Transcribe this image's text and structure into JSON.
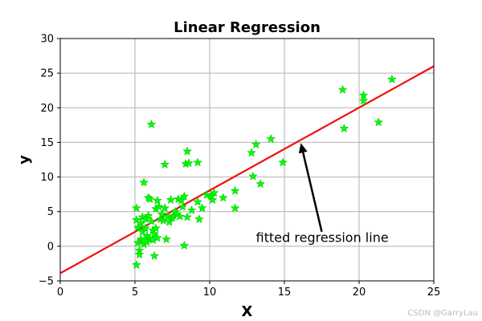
{
  "chart_data": {
    "type": "scatter",
    "title": "Linear Regression",
    "xlabel": "X",
    "ylabel": "y",
    "xlim": [
      0,
      25
    ],
    "ylim": [
      -5,
      30
    ],
    "x_ticks": [
      0,
      5,
      10,
      15,
      20,
      25
    ],
    "y_ticks": [
      -5,
      0,
      5,
      10,
      15,
      20,
      25,
      30
    ],
    "grid": true,
    "colors": {
      "points": "#00ff00",
      "line": "#ee1111",
      "grid": "#b0b0b0"
    },
    "series": [
      {
        "kind": "scatter",
        "marker": "star",
        "points": [
          [
            5.1,
            5.5
          ],
          [
            5.1,
            3.8
          ],
          [
            5.2,
            2.7
          ],
          [
            5.1,
            -2.7
          ],
          [
            5.2,
            0.5
          ],
          [
            5.3,
            -0.6
          ],
          [
            5.3,
            -1.2
          ],
          [
            5.4,
            3.3
          ],
          [
            5.4,
            1.0
          ],
          [
            5.5,
            4.2
          ],
          [
            5.5,
            2.1
          ],
          [
            5.6,
            0.3
          ],
          [
            5.6,
            9.2
          ],
          [
            5.6,
            0.8
          ],
          [
            5.7,
            3.9
          ],
          [
            5.7,
            2.6
          ],
          [
            5.8,
            1.5
          ],
          [
            5.8,
            0.6
          ],
          [
            5.9,
            7.0
          ],
          [
            5.9,
            4.4
          ],
          [
            6.0,
            6.8
          ],
          [
            6.0,
            1.1
          ],
          [
            6.1,
            3.6
          ],
          [
            6.1,
            17.6
          ],
          [
            6.2,
            2.3
          ],
          [
            6.2,
            0.9
          ],
          [
            6.3,
            1.8
          ],
          [
            6.3,
            -1.4
          ],
          [
            6.4,
            5.4
          ],
          [
            6.4,
            2.6
          ],
          [
            6.5,
            6.6
          ],
          [
            6.5,
            1.2
          ],
          [
            6.6,
            5.7
          ],
          [
            6.7,
            3.9
          ],
          [
            6.8,
            4.6
          ],
          [
            6.9,
            3.7
          ],
          [
            7.0,
            11.8
          ],
          [
            7.0,
            5.5
          ],
          [
            7.1,
            1.0
          ],
          [
            7.2,
            4.3
          ],
          [
            7.3,
            3.5
          ],
          [
            7.4,
            6.7
          ],
          [
            7.5,
            4.1
          ],
          [
            7.6,
            4.4
          ],
          [
            7.7,
            5.0
          ],
          [
            7.8,
            4.6
          ],
          [
            7.9,
            6.8
          ],
          [
            8.0,
            4.3
          ],
          [
            8.1,
            6.6
          ],
          [
            8.2,
            5.7
          ],
          [
            8.3,
            0.1
          ],
          [
            8.3,
            7.2
          ],
          [
            8.4,
            11.9
          ],
          [
            8.5,
            13.7
          ],
          [
            8.5,
            4.2
          ],
          [
            8.6,
            12.0
          ],
          [
            8.8,
            5.2
          ],
          [
            9.2,
            12.1
          ],
          [
            9.2,
            6.4
          ],
          [
            9.3,
            3.9
          ],
          [
            9.5,
            5.5
          ],
          [
            9.8,
            7.4
          ],
          [
            10.1,
            7.2
          ],
          [
            10.2,
            6.7
          ],
          [
            10.3,
            7.7
          ],
          [
            10.9,
            7.0
          ],
          [
            11.7,
            5.5
          ],
          [
            11.7,
            8.0
          ],
          [
            12.8,
            13.5
          ],
          [
            12.9,
            10.1
          ],
          [
            13.1,
            14.7
          ],
          [
            13.4,
            9.0
          ],
          [
            14.1,
            15.5
          ],
          [
            14.9,
            12.1
          ],
          [
            18.9,
            22.6
          ],
          [
            19.0,
            17.0
          ],
          [
            20.3,
            21.8
          ],
          [
            20.3,
            21.0
          ],
          [
            21.3,
            17.9
          ],
          [
            22.2,
            24.1
          ]
        ]
      },
      {
        "kind": "line",
        "points": [
          [
            0,
            -3.9
          ],
          [
            25,
            26.0
          ]
        ]
      }
    ],
    "annotation": {
      "text": "fitted regression line",
      "text_at": [
        13.1,
        0.6
      ],
      "arrow_from": [
        17.5,
        2.1
      ],
      "arrow_to": [
        16.1,
        14.9
      ]
    }
  },
  "watermark": "CSDN @GarryLau"
}
